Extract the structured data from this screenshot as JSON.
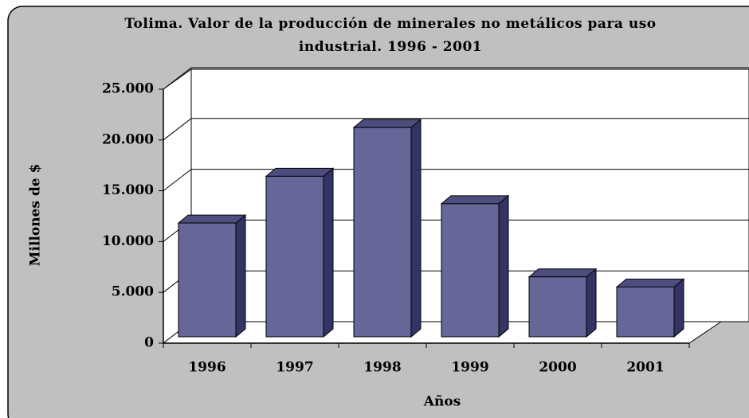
{
  "chart_data": {
    "type": "bar3d",
    "title": "Tolima. Valor de la producción de minerales no metálicos para uso industrial. 1996 - 2001",
    "x_label": "Años",
    "y_label": "Millones de $",
    "categories": [
      "1996",
      "1997",
      "1998",
      "1999",
      "2000",
      "2001"
    ],
    "values": [
      11200,
      15800,
      20600,
      13100,
      5900,
      4900
    ],
    "color": "#666699",
    "ylim": [
      0,
      25000
    ],
    "yticks": [
      0,
      {
        "value": 5000,
        "label": "5.000"
      },
      {
        "value": 10000,
        "label": "10.000"
      },
      {
        "value": 15000,
        "label": "15.000"
      },
      {
        "value": 20000,
        "label": "20.000"
      },
      {
        "value": 25000,
        "label": "25.000"
      }
    ],
    "grid": true
  }
}
